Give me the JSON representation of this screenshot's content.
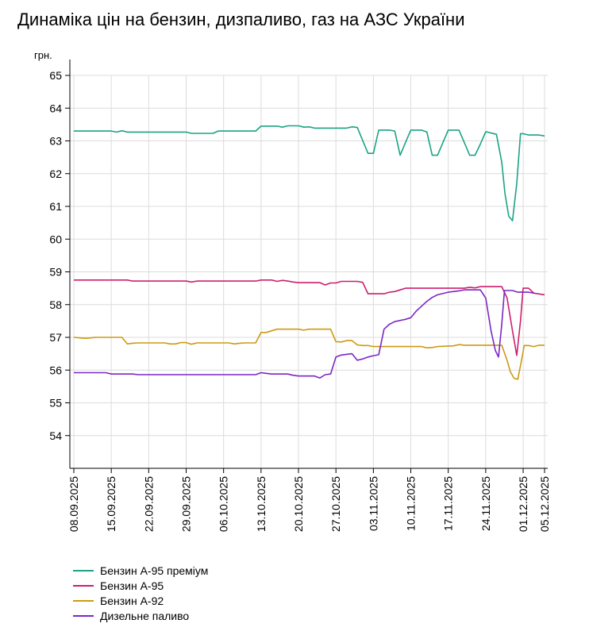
{
  "title": "Динаміка цін на бензин, дизпаливо, газ на АЗС України",
  "chart_data": {
    "type": "line",
    "ylabel": "грн.",
    "ylim": [
      53,
      65
    ],
    "yticks": [
      54,
      55,
      56,
      57,
      58,
      59,
      60,
      61,
      62,
      63,
      64,
      65
    ],
    "xlim": [
      0,
      88
    ],
    "xtick_labels": [
      {
        "label": "08.09.2025",
        "x": 0
      },
      {
        "label": "15.09.2025",
        "x": 7
      },
      {
        "label": "22.09.2025",
        "x": 14
      },
      {
        "label": "29.09.2025",
        "x": 21
      },
      {
        "label": "06.10.2025",
        "x": 28
      },
      {
        "label": "13.10.2025",
        "x": 35
      },
      {
        "label": "20.10.2025",
        "x": 42
      },
      {
        "label": "27.10.2025",
        "x": 49
      },
      {
        "label": "03.11.2025",
        "x": 56
      },
      {
        "label": "10.11.2025",
        "x": 63
      },
      {
        "label": "17.11.2025",
        "x": 70
      },
      {
        "label": "24.11.2025",
        "x": 77
      },
      {
        "label": "01.12.2025",
        "x": 84
      },
      {
        "label": "05.12.2025",
        "x": 88
      }
    ],
    "grid": true,
    "legend_position": "bottom-left",
    "series": [
      {
        "name": "Бензин А-95 преміум",
        "color": "#1aa385",
        "points": [
          [
            0,
            63.3
          ],
          [
            7,
            63.3
          ],
          [
            8,
            63.27
          ],
          [
            9,
            63.31
          ],
          [
            10,
            63.27
          ],
          [
            21,
            63.27
          ],
          [
            22,
            63.23
          ],
          [
            26,
            63.23
          ],
          [
            27,
            63.3
          ],
          [
            34,
            63.3
          ],
          [
            35,
            63.45
          ],
          [
            38,
            63.45
          ],
          [
            39,
            63.42
          ],
          [
            40,
            63.46
          ],
          [
            42,
            63.46
          ],
          [
            43,
            63.42
          ],
          [
            44,
            63.43
          ],
          [
            45,
            63.39
          ],
          [
            51,
            63.39
          ],
          [
            52,
            63.43
          ],
          [
            53,
            63.41
          ],
          [
            55,
            62.62
          ],
          [
            56,
            62.62
          ],
          [
            57,
            63.33
          ],
          [
            59,
            63.33
          ],
          [
            60,
            63.3
          ],
          [
            61,
            62.56
          ],
          [
            62,
            62.95
          ],
          [
            63,
            63.33
          ],
          [
            65,
            63.33
          ],
          [
            66,
            63.27
          ],
          [
            67,
            62.56
          ],
          [
            68,
            62.56
          ],
          [
            69,
            62.95
          ],
          [
            70,
            63.33
          ],
          [
            72,
            63.33
          ],
          [
            73,
            62.95
          ],
          [
            74,
            62.56
          ],
          [
            75,
            62.56
          ],
          [
            76,
            62.9
          ],
          [
            77,
            63.28
          ],
          [
            79,
            63.2
          ],
          [
            80,
            62.35
          ],
          [
            80.6,
            61.4
          ],
          [
            81.3,
            60.7
          ],
          [
            82,
            60.56
          ],
          [
            82.8,
            61.7
          ],
          [
            83.5,
            63.22
          ],
          [
            84,
            63.22
          ],
          [
            85,
            63.18
          ],
          [
            87,
            63.18
          ],
          [
            88,
            63.15
          ]
        ]
      },
      {
        "name": "Бензин А-95",
        "color": "#cc1f6e",
        "points": [
          [
            0,
            58.75
          ],
          [
            10,
            58.75
          ],
          [
            11,
            58.72
          ],
          [
            21,
            58.72
          ],
          [
            22,
            58.69
          ],
          [
            23,
            58.72
          ],
          [
            34,
            58.72
          ],
          [
            35,
            58.75
          ],
          [
            37,
            58.75
          ],
          [
            38,
            58.71
          ],
          [
            39,
            58.74
          ],
          [
            40,
            58.72
          ],
          [
            41,
            58.69
          ],
          [
            42,
            58.67
          ],
          [
            46,
            58.67
          ],
          [
            47,
            58.6
          ],
          [
            48,
            58.66
          ],
          [
            49,
            58.66
          ],
          [
            50,
            58.71
          ],
          [
            53,
            58.71
          ],
          [
            54,
            58.68
          ],
          [
            55,
            58.33
          ],
          [
            58,
            58.33
          ],
          [
            59,
            58.38
          ],
          [
            60,
            58.4
          ],
          [
            61,
            58.45
          ],
          [
            62,
            58.5
          ],
          [
            73,
            58.5
          ],
          [
            74,
            58.53
          ],
          [
            75,
            58.51
          ],
          [
            76,
            58.55
          ],
          [
            80,
            58.55
          ],
          [
            81,
            58.2
          ],
          [
            82,
            57.2
          ],
          [
            82.8,
            56.45
          ],
          [
            83.5,
            57.5
          ],
          [
            84,
            58.5
          ],
          [
            85,
            58.5
          ],
          [
            86,
            58.35
          ],
          [
            88,
            58.3
          ]
        ]
      },
      {
        "name": "Бензин А-92",
        "color": "#cc9a12",
        "points": [
          [
            0,
            57.0
          ],
          [
            2,
            56.97
          ],
          [
            3,
            56.98
          ],
          [
            4,
            57.0
          ],
          [
            9,
            57.0
          ],
          [
            10,
            56.8
          ],
          [
            11,
            56.82
          ],
          [
            12,
            56.83
          ],
          [
            17,
            56.83
          ],
          [
            18,
            56.8
          ],
          [
            19,
            56.8
          ],
          [
            20,
            56.84
          ],
          [
            21,
            56.84
          ],
          [
            22,
            56.79
          ],
          [
            23,
            56.83
          ],
          [
            29,
            56.83
          ],
          [
            30,
            56.8
          ],
          [
            31,
            56.82
          ],
          [
            32,
            56.83
          ],
          [
            34,
            56.83
          ],
          [
            35,
            57.15
          ],
          [
            36,
            57.15
          ],
          [
            37,
            57.2
          ],
          [
            38,
            57.25
          ],
          [
            42,
            57.25
          ],
          [
            43,
            57.22
          ],
          [
            44,
            57.25
          ],
          [
            48,
            57.25
          ],
          [
            49,
            56.87
          ],
          [
            50,
            56.86
          ],
          [
            51,
            56.9
          ],
          [
            52,
            56.9
          ],
          [
            53,
            56.77
          ],
          [
            54,
            56.75
          ],
          [
            55,
            56.75
          ],
          [
            56,
            56.72
          ],
          [
            65,
            56.72
          ],
          [
            66,
            56.68
          ],
          [
            67,
            56.69
          ],
          [
            68,
            56.72
          ],
          [
            71,
            56.74
          ],
          [
            72,
            56.78
          ],
          [
            73,
            56.76
          ],
          [
            80,
            56.76
          ],
          [
            81,
            56.3
          ],
          [
            81.6,
            55.95
          ],
          [
            82.3,
            55.75
          ],
          [
            83,
            55.72
          ],
          [
            83.7,
            56.3
          ],
          [
            84.2,
            56.75
          ],
          [
            85,
            56.75
          ],
          [
            86,
            56.72
          ],
          [
            87,
            56.76
          ],
          [
            88,
            56.76
          ]
        ]
      },
      {
        "name": "Дизельне паливо",
        "color": "#7b27c4",
        "points": [
          [
            0,
            55.92
          ],
          [
            6,
            55.92
          ],
          [
            7,
            55.88
          ],
          [
            11,
            55.88
          ],
          [
            12,
            55.86
          ],
          [
            34,
            55.86
          ],
          [
            35,
            55.92
          ],
          [
            36,
            55.9
          ],
          [
            37,
            55.88
          ],
          [
            40,
            55.88
          ],
          [
            41,
            55.84
          ],
          [
            42,
            55.82
          ],
          [
            45,
            55.82
          ],
          [
            46,
            55.76
          ],
          [
            47,
            55.86
          ],
          [
            48,
            55.88
          ],
          [
            49,
            56.4
          ],
          [
            50,
            56.46
          ],
          [
            52,
            56.5
          ],
          [
            53,
            56.3
          ],
          [
            54,
            56.34
          ],
          [
            55,
            56.4
          ],
          [
            56,
            56.44
          ],
          [
            57,
            56.47
          ],
          [
            58,
            57.25
          ],
          [
            59,
            57.4
          ],
          [
            60,
            57.48
          ],
          [
            62,
            57.55
          ],
          [
            63,
            57.6
          ],
          [
            64,
            57.8
          ],
          [
            65,
            57.95
          ],
          [
            66,
            58.1
          ],
          [
            67,
            58.22
          ],
          [
            68,
            58.3
          ],
          [
            70,
            58.38
          ],
          [
            72,
            58.42
          ],
          [
            73,
            58.45
          ],
          [
            76,
            58.45
          ],
          [
            77,
            58.2
          ],
          [
            78,
            57.2
          ],
          [
            78.8,
            56.6
          ],
          [
            79.4,
            56.4
          ],
          [
            80,
            57.4
          ],
          [
            80.5,
            58.43
          ],
          [
            82,
            58.43
          ],
          [
            83,
            58.38
          ],
          [
            85,
            58.38
          ],
          [
            86,
            58.35
          ]
        ]
      }
    ]
  }
}
